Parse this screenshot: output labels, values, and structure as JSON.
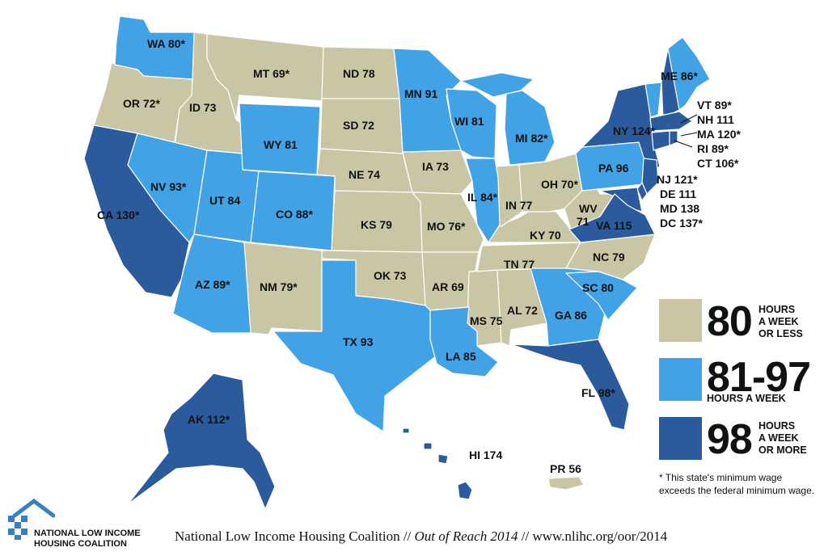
{
  "colors": {
    "tier_80_or_less": "#c9c6a6",
    "tier_81_97": "#42a2e6",
    "tier_98_plus": "#2b5b9c",
    "logo_blue": "#3a7fc4"
  },
  "states": {
    "WA": "WA 80*",
    "OR": "OR 72*",
    "CA": "CA 130*",
    "ID": "ID 73",
    "NV": "NV 93*",
    "MT": "MT 69*",
    "WY": "WY 81",
    "UT": "UT 84",
    "AZ": "AZ 89*",
    "CO": "CO 88*",
    "NM": "NM 79*",
    "ND": "ND 78",
    "SD": "SD 72",
    "NE": "NE 74",
    "KS": "KS 79",
    "OK": "OK 73",
    "TX": "TX 93",
    "MN": "MN 91",
    "IA": "IA 73",
    "MO": "MO 76*",
    "AR": "AR 69",
    "LA": "LA 85",
    "WI": "WI 81",
    "IL": "IL 84*",
    "MI": "MI 82*",
    "IN": "IN 77",
    "OH": "OH 70*",
    "KY": "KY 70",
    "TN": "TN 77",
    "MS": "MS 75",
    "AL": "AL 72",
    "GA": "GA 86",
    "FL": "FL 98*",
    "SC": "SC 80",
    "NC": "NC 79",
    "VA": "VA 115",
    "WV": "WV",
    "WV_value": "71",
    "PA": "PA 96",
    "NY": "NY 124*",
    "ME": "ME 86*",
    "VT": "VT 89*",
    "NH": "NH 111",
    "MA": "MA 120*",
    "RI": "RI 89*",
    "CT": "CT 106*",
    "NJ": "NJ 121*",
    "DE": "DE 111",
    "MD": "MD 138",
    "DC": "DC 137*",
    "AK": "AK 112*",
    "HI": "HI 174",
    "PR": "PR 56"
  },
  "legend": [
    {
      "number": "80",
      "text": "HOURS\nA WEEK\nOR LESS"
    },
    {
      "number": "81-97",
      "text": "HOURS A WEEK"
    },
    {
      "number": "98",
      "text": "HOURS\nA WEEK\nOR MORE"
    }
  ],
  "note": "* This state's minimum wage exceeds the federal minimum wage.",
  "org_name": "NATIONAL LOW INCOME\nHOUSING COALITION",
  "footer": {
    "org": "National Low Income Housing Coalition",
    "sep": "//",
    "report": "Out of Reach 2014",
    "url": "www.nlihc.org/oor/2014"
  }
}
